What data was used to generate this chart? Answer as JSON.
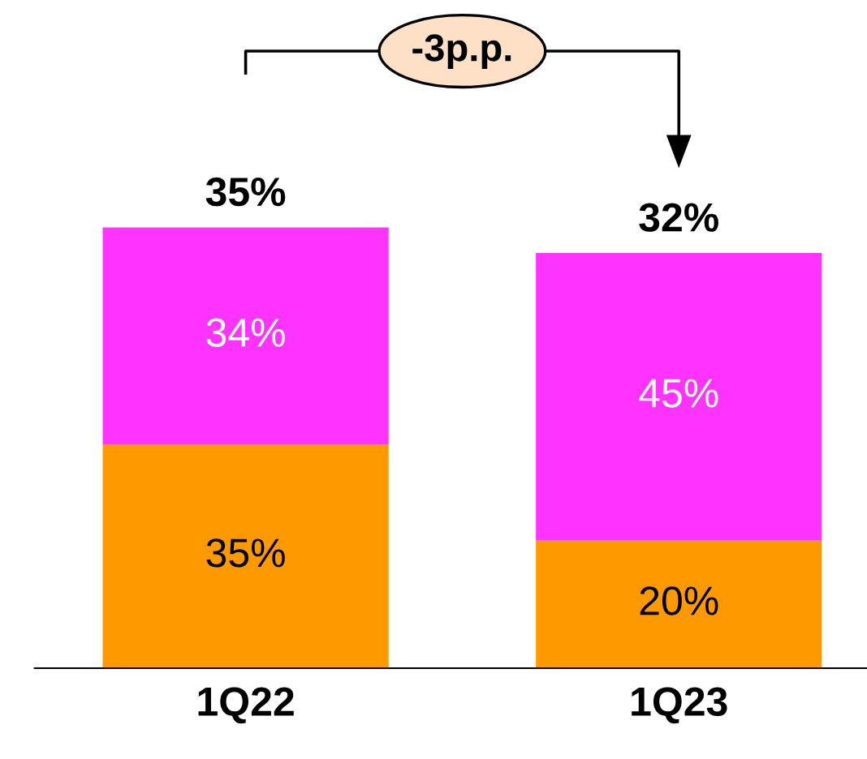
{
  "chart_data": {
    "type": "bar",
    "stacked": true,
    "categories": [
      "1Q22",
      "1Q23"
    ],
    "series": [
      {
        "color": "#ff9900",
        "values": [
          35,
          20
        ],
        "value_labels": [
          "35%",
          "20%"
        ]
      },
      {
        "color": "#ff33ff",
        "values": [
          34,
          45
        ],
        "value_labels": [
          "34%",
          "45%"
        ]
      }
    ],
    "annotations": [
      {
        "text": "35%",
        "x": "1Q22",
        "y": 69
      },
      {
        "text": "32%",
        "x": "1Q23",
        "y": 65
      },
      "-3p.p."
    ],
    "grid": false,
    "legend": false
  }
}
